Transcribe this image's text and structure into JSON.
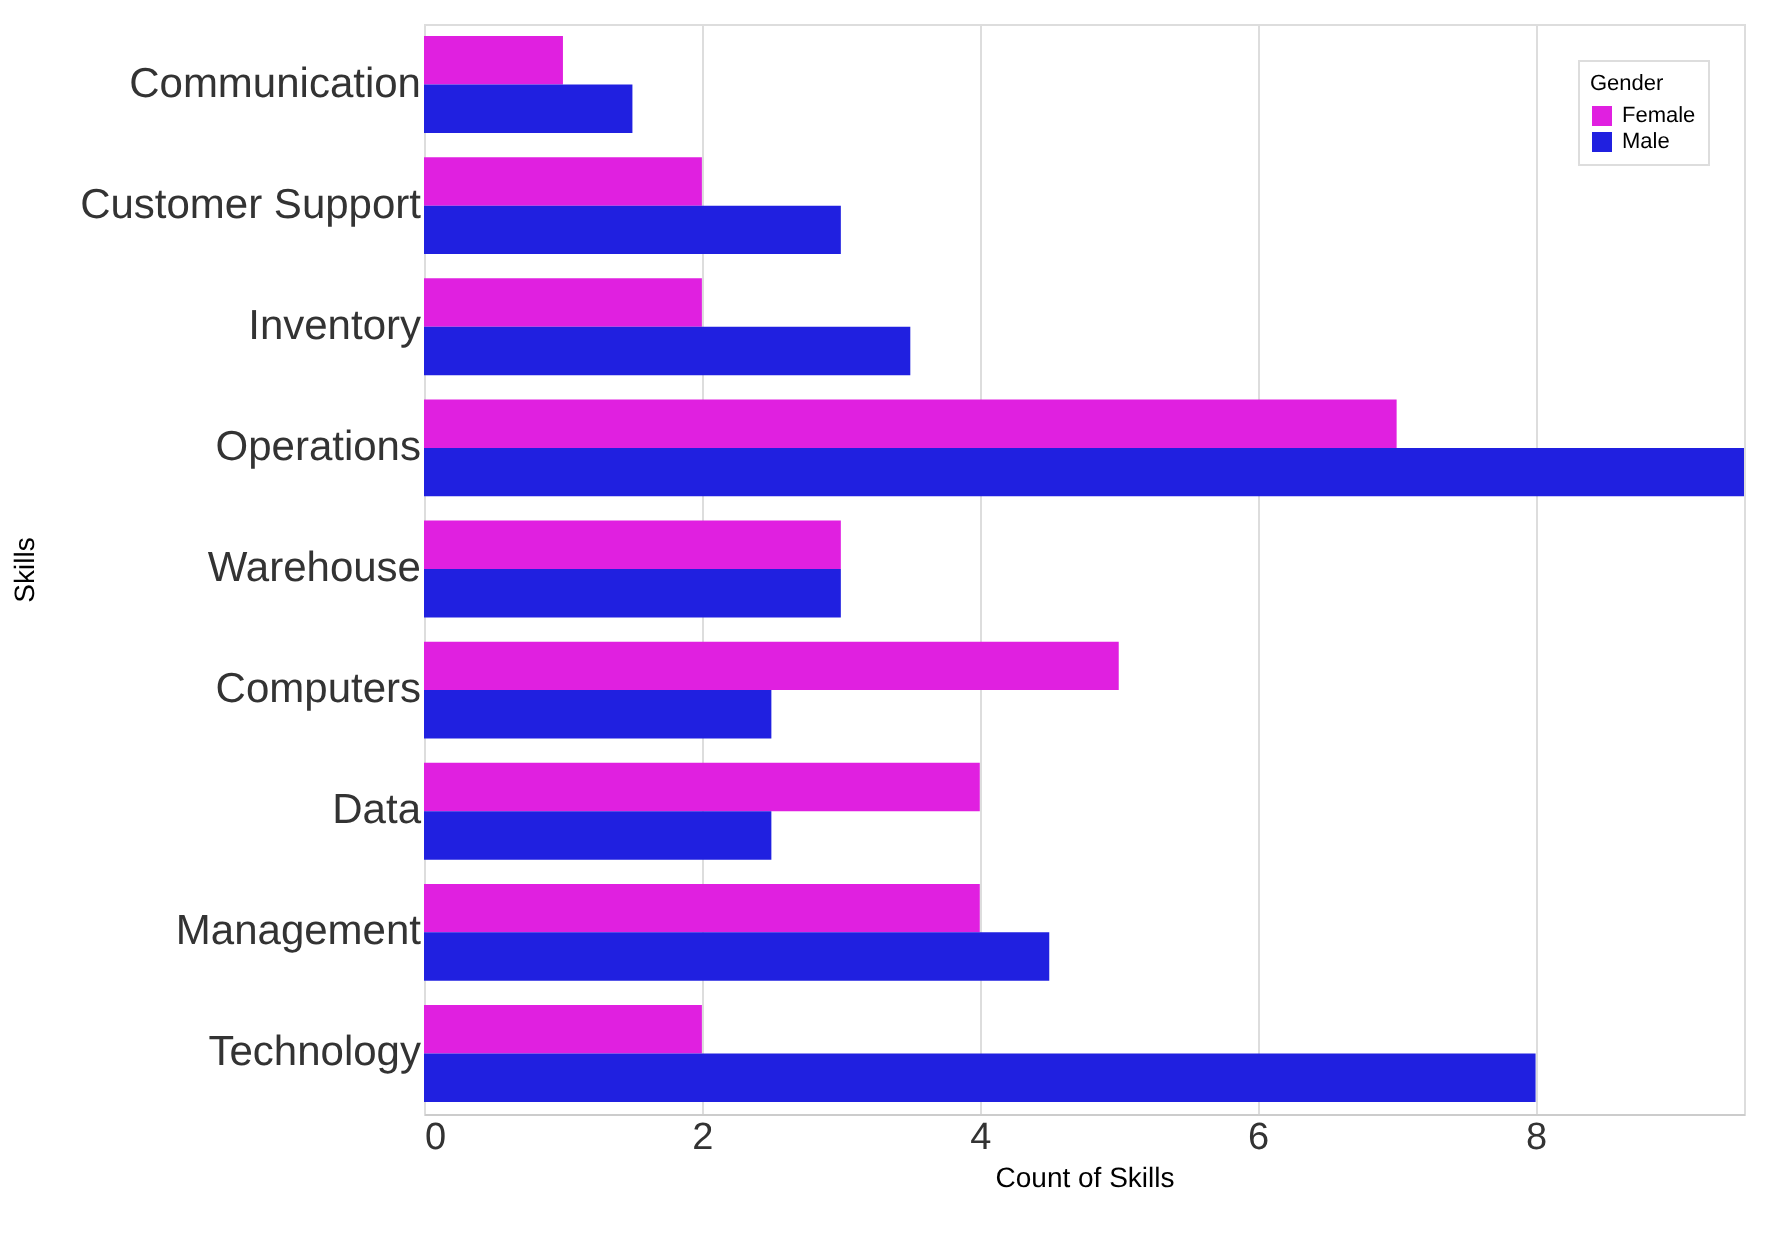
{
  "chart_data": {
    "type": "bar",
    "orientation": "horizontal",
    "xlabel": "Count of Skills",
    "ylabel": "Skills",
    "legend_title": "Gender",
    "categories": [
      "Communication",
      "Customer Support",
      "Inventory",
      "Operations",
      "Warehouse",
      "Computers",
      "Data",
      "Management",
      "Technology"
    ],
    "series": [
      {
        "name": "Female",
        "color": "#e020e0",
        "values": [
          1,
          2,
          2,
          7,
          3,
          5,
          4,
          4,
          2
        ]
      },
      {
        "name": "Male",
        "color": "#2020e0",
        "values": [
          1.5,
          3,
          3.5,
          9.5,
          3,
          2.5,
          2.5,
          4.5,
          8
        ]
      }
    ],
    "xlim": [
      0,
      9.5
    ],
    "xticks": [
      0,
      2,
      4,
      6,
      8
    ],
    "grid": "x",
    "legend": "top right"
  }
}
